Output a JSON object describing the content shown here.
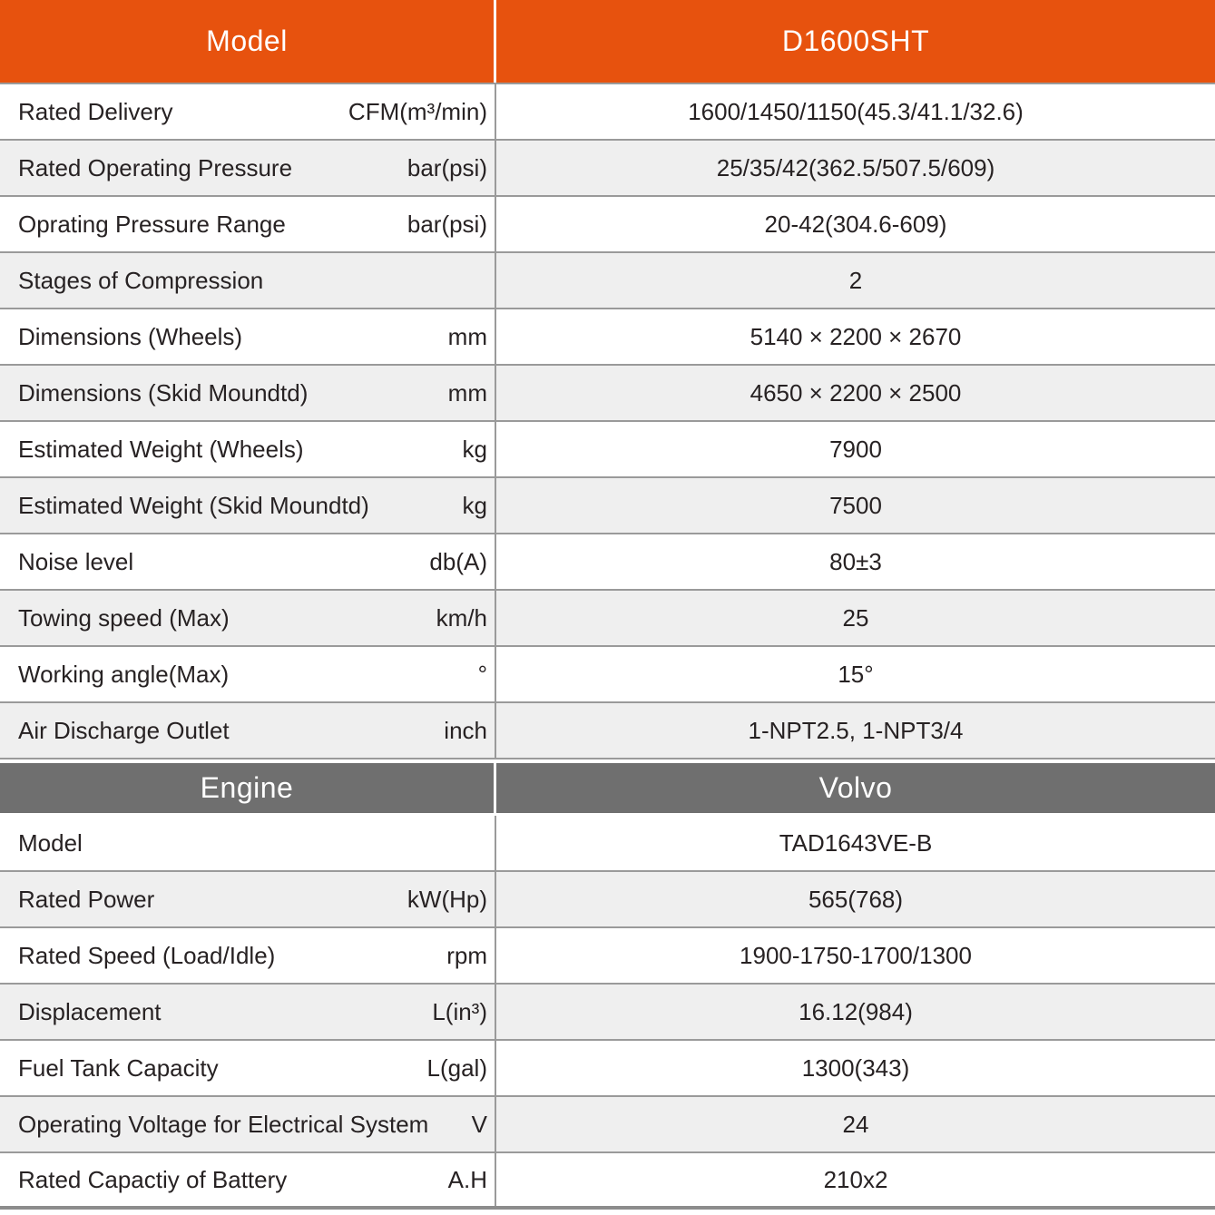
{
  "table": {
    "title_header": {
      "left": "Model",
      "right": "D1600SHT"
    },
    "engine_header": {
      "left": "Engine",
      "right": "Volvo"
    },
    "section1_rows": [
      {
        "label": "Rated Delivery",
        "unit": "CFM(m³/min)",
        "value": "1600/1450/1150(45.3/41.1/32.6)"
      },
      {
        "label": "Rated Operating Pressure",
        "unit": "bar(psi)",
        "value": "25/35/42(362.5/507.5/609)"
      },
      {
        "label": "Oprating Pressure Range",
        "unit": "bar(psi)",
        "value": "20-42(304.6-609)"
      },
      {
        "label": "Stages of Compression",
        "unit": "",
        "value": "2"
      },
      {
        "label": "Dimensions (Wheels)",
        "unit": "mm",
        "value": "5140 × 2200 × 2670"
      },
      {
        "label": "Dimensions (Skid Moundtd)",
        "unit": "mm",
        "value": "4650 × 2200 × 2500"
      },
      {
        "label": "Estimated Weight (Wheels)",
        "unit": "kg",
        "value": "7900"
      },
      {
        "label": "Estimated Weight (Skid Moundtd)",
        "unit": "kg",
        "value": "7500"
      },
      {
        "label": "Noise level",
        "unit": "db(A)",
        "value": "80±3"
      },
      {
        "label": "Towing speed (Max)",
        "unit": "km/h",
        "value": "25"
      },
      {
        "label": "Working angle(Max)",
        "unit": "°",
        "value": "15°"
      },
      {
        "label": "Air Discharge Outlet",
        "unit": "inch",
        "value": "1-NPT2.5, 1-NPT3/4"
      }
    ],
    "section2_rows": [
      {
        "label": "Model",
        "unit": "",
        "value": "TAD1643VE-B"
      },
      {
        "label": "Rated Power",
        "unit": "kW(Hp)",
        "value": "565(768)"
      },
      {
        "label": "Rated Speed (Load/Idle)",
        "unit": "rpm",
        "value": "1900-1750-1700/1300"
      },
      {
        "label": "Displacement",
        "unit": "L(in³)",
        "value": "16.12(984)"
      },
      {
        "label": "Fuel Tank Capacity",
        "unit": "L(gal)",
        "value": "1300(343)"
      },
      {
        "label": "Operating Voltage for Electrical System",
        "unit": "V",
        "value": "24"
      },
      {
        "label": "Rated Capactiy of Battery",
        "unit": "A.H",
        "value": "210x2"
      }
    ],
    "colors": {
      "accent_orange": "#E7520E",
      "engine_gray": "#6F6F6F",
      "row_alt_gray": "#EFEFEF",
      "divider_gray": "#9A9A9A"
    }
  }
}
